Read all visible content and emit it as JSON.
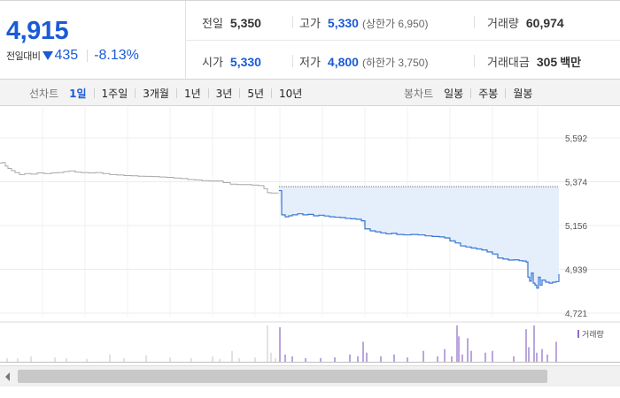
{
  "summary": {
    "price": "4,915",
    "change_label": "전일대비",
    "change_amount": "435",
    "change_percent": "-8.13%",
    "prev_close_label": "전일",
    "prev_close": "5,350",
    "open_label": "시가",
    "open": "5,330",
    "high_label": "고가",
    "high": "5,330",
    "upper_limit": "(상한가 6,950)",
    "low_label": "저가",
    "low": "4,800",
    "lower_limit": "(하한가 3,750)",
    "volume_label": "거래량",
    "volume": "60,974",
    "amount_label": "거래대금",
    "amount": "305",
    "amount_unit": "백만"
  },
  "tabs": {
    "line_label": "선차트",
    "line_items": [
      "1일",
      "1주일",
      "3개월",
      "1년",
      "3년",
      "5년",
      "10년"
    ],
    "line_active": 0,
    "candle_label": "봉차트",
    "candle_items": [
      "일봉",
      "주봉",
      "월봉"
    ]
  },
  "colors": {
    "up": "#d32f2f",
    "down": "#1a5ad8",
    "today_line": "#3a78d4",
    "today_fill": "#e5eefb",
    "prev_line": "#a8a8a8",
    "volume_prev": "#c4c4c4",
    "volume_today": "#8d6bc6"
  },
  "chart_data": {
    "type": "line",
    "y_ticks": [
      "5,592",
      "5,374",
      "5,156",
      "4,939",
      "4,721"
    ],
    "ylim": [
      4721,
      5592
    ],
    "reference_line": 5350,
    "prev_day_series": [
      [
        0,
        5468
      ],
      [
        3,
        5470
      ],
      [
        6,
        5452
      ],
      [
        9,
        5440
      ],
      [
        13,
        5430
      ],
      [
        17,
        5420
      ],
      [
        22,
        5410
      ],
      [
        28,
        5415
      ],
      [
        35,
        5412
      ],
      [
        42,
        5418
      ],
      [
        50,
        5415
      ],
      [
        58,
        5418
      ],
      [
        65,
        5420
      ],
      [
        72,
        5425
      ],
      [
        78,
        5428
      ],
      [
        85,
        5422
      ],
      [
        92,
        5420
      ],
      [
        100,
        5418
      ],
      [
        108,
        5420
      ],
      [
        116,
        5415
      ],
      [
        124,
        5410
      ],
      [
        132,
        5408
      ],
      [
        140,
        5405
      ],
      [
        148,
        5404
      ],
      [
        156,
        5402
      ],
      [
        164,
        5401
      ],
      [
        172,
        5400
      ],
      [
        180,
        5398
      ],
      [
        188,
        5396
      ],
      [
        196,
        5393
      ],
      [
        204,
        5390
      ],
      [
        212,
        5385
      ],
      [
        220,
        5383
      ],
      [
        228,
        5380
      ],
      [
        236,
        5378
      ],
      [
        244,
        5378
      ],
      [
        252,
        5370
      ],
      [
        260,
        5362
      ],
      [
        268,
        5360
      ],
      [
        276,
        5360
      ],
      [
        284,
        5358
      ],
      [
        292,
        5355
      ],
      [
        298,
        5340
      ],
      [
        302,
        5320
      ],
      [
        306,
        5318
      ],
      [
        310,
        5318
      ],
      [
        314,
        5320
      ]
    ],
    "today_series": [
      [
        315,
        5330
      ],
      [
        318,
        5210
      ],
      [
        322,
        5200
      ],
      [
        326,
        5205
      ],
      [
        330,
        5210
      ],
      [
        336,
        5215
      ],
      [
        342,
        5210
      ],
      [
        348,
        5212
      ],
      [
        354,
        5205
      ],
      [
        360,
        5208
      ],
      [
        366,
        5204
      ],
      [
        372,
        5200
      ],
      [
        378,
        5198
      ],
      [
        384,
        5196
      ],
      [
        390,
        5192
      ],
      [
        396,
        5190
      ],
      [
        402,
        5188
      ],
      [
        408,
        5180
      ],
      [
        412,
        5140
      ],
      [
        418,
        5130
      ],
      [
        424,
        5125
      ],
      [
        430,
        5120
      ],
      [
        436,
        5115
      ],
      [
        442,
        5118
      ],
      [
        448,
        5112
      ],
      [
        456,
        5110
      ],
      [
        464,
        5112
      ],
      [
        472,
        5110
      ],
      [
        480,
        5105
      ],
      [
        488,
        5102
      ],
      [
        496,
        5100
      ],
      [
        502,
        5095
      ],
      [
        508,
        5080
      ],
      [
        514,
        5070
      ],
      [
        520,
        5055
      ],
      [
        526,
        5050
      ],
      [
        532,
        5045
      ],
      [
        538,
        5040
      ],
      [
        544,
        5035
      ],
      [
        550,
        5025
      ],
      [
        556,
        5015
      ],
      [
        562,
        4995
      ],
      [
        568,
        4990
      ],
      [
        574,
        4985
      ],
      [
        580,
        4986
      ],
      [
        586,
        4982
      ],
      [
        590,
        4980
      ],
      [
        594,
        4975
      ],
      [
        596,
        4900
      ],
      [
        598,
        4880
      ],
      [
        600,
        4920
      ],
      [
        602,
        4870
      ],
      [
        604,
        4860
      ],
      [
        606,
        4845
      ],
      [
        608,
        4900
      ],
      [
        610,
        4860
      ],
      [
        612,
        4885
      ],
      [
        616,
        4875
      ],
      [
        620,
        4870
      ],
      [
        624,
        4875
      ],
      [
        628,
        4878
      ],
      [
        631,
        4915
      ]
    ],
    "volume_legend": "거래량",
    "volume_prev": [
      [
        8,
        0.1
      ],
      [
        20,
        0.1
      ],
      [
        35,
        0.15
      ],
      [
        62,
        0.12
      ],
      [
        75,
        0.1
      ],
      [
        98,
        0.08
      ],
      [
        124,
        0.2
      ],
      [
        140,
        0.1
      ],
      [
        165,
        0.18
      ],
      [
        192,
        0.12
      ],
      [
        216,
        0.1
      ],
      [
        240,
        0.15
      ],
      [
        248,
        0.08
      ],
      [
        262,
        0.3
      ],
      [
        270,
        0.1
      ],
      [
        288,
        0.12
      ],
      [
        302,
        1.0
      ],
      [
        306,
        0.25
      ],
      [
        311,
        0.1
      ]
    ],
    "volume_today": [
      [
        316,
        0.95
      ],
      [
        322,
        0.2
      ],
      [
        330,
        0.15
      ],
      [
        345,
        0.1
      ],
      [
        362,
        0.1
      ],
      [
        378,
        0.12
      ],
      [
        395,
        0.2
      ],
      [
        404,
        0.15
      ],
      [
        410,
        0.55
      ],
      [
        414,
        0.25
      ],
      [
        430,
        0.15
      ],
      [
        445,
        0.2
      ],
      [
        460,
        0.12
      ],
      [
        478,
        0.3
      ],
      [
        494,
        0.15
      ],
      [
        502,
        0.35
      ],
      [
        510,
        0.15
      ],
      [
        516,
        1.0
      ],
      [
        518,
        0.7
      ],
      [
        522,
        0.2
      ],
      [
        528,
        0.65
      ],
      [
        532,
        0.3
      ],
      [
        548,
        0.25
      ],
      [
        556,
        0.3
      ],
      [
        580,
        0.15
      ],
      [
        594,
        0.9
      ],
      [
        597,
        0.4
      ],
      [
        603,
        1.0
      ],
      [
        606,
        0.25
      ],
      [
        612,
        0.35
      ],
      [
        618,
        0.2
      ],
      [
        628,
        0.55
      ]
    ]
  }
}
